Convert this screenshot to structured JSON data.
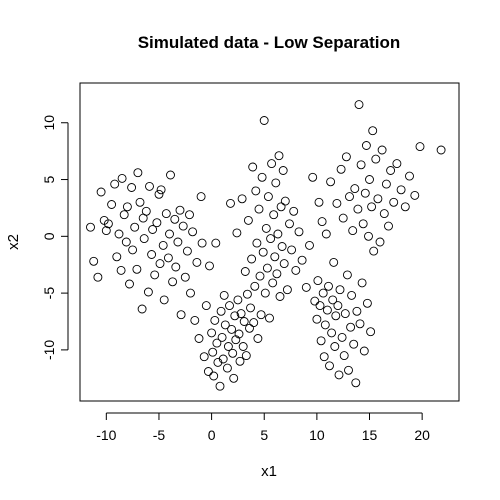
{
  "chart_data": {
    "type": "scatter",
    "title": "Simulated data - Low Separation",
    "xlabel": "x1",
    "ylabel": "x2",
    "xlim": [
      -12.5,
      23.5
    ],
    "ylim": [
      -14.5,
      13.5
    ],
    "x_ticks": [
      -10,
      -5,
      0,
      5,
      10,
      15,
      20
    ],
    "y_ticks": [
      -10,
      -5,
      0,
      5,
      10
    ],
    "grid": false,
    "marker": "open-circle",
    "points": [
      [
        -11.5,
        0.8
      ],
      [
        -11.2,
        -2.2
      ],
      [
        -10.8,
        -3.6
      ],
      [
        -10.5,
        3.9
      ],
      [
        -10.2,
        1.4
      ],
      [
        -10.0,
        0.5
      ],
      [
        -9.8,
        1.1
      ],
      [
        -9.5,
        2.8
      ],
      [
        -9.2,
        4.6
      ],
      [
        -9.0,
        -1.8
      ],
      [
        -8.8,
        0.2
      ],
      [
        -8.6,
        -3.0
      ],
      [
        -8.5,
        5.1
      ],
      [
        -8.3,
        1.9
      ],
      [
        -8.1,
        -0.5
      ],
      [
        -8.0,
        2.6
      ],
      [
        -7.8,
        -4.2
      ],
      [
        -7.6,
        4.3
      ],
      [
        -7.5,
        -1.2
      ],
      [
        -7.3,
        0.8
      ],
      [
        -7.1,
        -2.9
      ],
      [
        -7.0,
        5.6
      ],
      [
        -6.8,
        3.0
      ],
      [
        -6.6,
        -6.4
      ],
      [
        -6.5,
        1.6
      ],
      [
        -6.4,
        -0.2
      ],
      [
        -6.2,
        2.2
      ],
      [
        -6.0,
        -4.9
      ],
      [
        -5.9,
        4.4
      ],
      [
        -5.7,
        -1.6
      ],
      [
        -5.6,
        0.6
      ],
      [
        -5.4,
        -3.4
      ],
      [
        -5.2,
        1.2
      ],
      [
        -5.0,
        3.7
      ],
      [
        -4.9,
        -2.4
      ],
      [
        -4.8,
        4.1
      ],
      [
        -4.6,
        -0.8
      ],
      [
        -4.5,
        -5.6
      ],
      [
        -4.3,
        2.0
      ],
      [
        -4.1,
        -1.9
      ],
      [
        -4.0,
        0.2
      ],
      [
        -3.9,
        5.4
      ],
      [
        -3.7,
        -4.0
      ],
      [
        -3.5,
        1.5
      ],
      [
        -3.4,
        -2.7
      ],
      [
        -3.2,
        -0.5
      ],
      [
        -3.0,
        2.3
      ],
      [
        -2.9,
        -6.9
      ],
      [
        -2.7,
        0.9
      ],
      [
        -2.5,
        -3.6
      ],
      [
        -2.3,
        -1.3
      ],
      [
        -2.1,
        1.9
      ],
      [
        -2.0,
        -5.0
      ],
      [
        -1.8,
        0.4
      ],
      [
        -1.6,
        -7.4
      ],
      [
        -1.4,
        -2.3
      ],
      [
        -1.2,
        -9.0
      ],
      [
        -1.0,
        3.5
      ],
      [
        -0.9,
        -0.6
      ],
      [
        -0.7,
        -10.6
      ],
      [
        -0.5,
        -6.1
      ],
      [
        -0.3,
        -11.9
      ],
      [
        -0.2,
        -2.6
      ],
      [
        0.0,
        -8.5
      ],
      [
        0.1,
        -10.2
      ],
      [
        0.2,
        -12.3
      ],
      [
        0.3,
        -7.4
      ],
      [
        0.4,
        -0.6
      ],
      [
        0.5,
        -9.4
      ],
      [
        0.6,
        -11.1
      ],
      [
        0.8,
        -13.2
      ],
      [
        0.9,
        -6.6
      ],
      [
        1.0,
        -8.9
      ],
      [
        1.1,
        -10.8
      ],
      [
        1.2,
        -5.2
      ],
      [
        1.3,
        -7.8
      ],
      [
        1.5,
        -11.6
      ],
      [
        1.6,
        -9.7
      ],
      [
        1.7,
        -6.1
      ],
      [
        1.8,
        2.9
      ],
      [
        1.9,
        -8.2
      ],
      [
        2.0,
        -10.3
      ],
      [
        2.1,
        -12.5
      ],
      [
        2.2,
        -7.0
      ],
      [
        2.3,
        -9.1
      ],
      [
        2.4,
        0.3
      ],
      [
        2.5,
        -5.6
      ],
      [
        2.6,
        -8.6
      ],
      [
        2.7,
        -11.0
      ],
      [
        2.8,
        -6.8
      ],
      [
        2.9,
        3.3
      ],
      [
        3.0,
        -9.7
      ],
      [
        3.1,
        -7.5
      ],
      [
        3.2,
        -3.1
      ],
      [
        3.3,
        -10.5
      ],
      [
        3.4,
        -5.1
      ],
      [
        3.5,
        1.4
      ],
      [
        3.6,
        -8.1
      ],
      [
        3.7,
        -6.3
      ],
      [
        3.8,
        -2.0
      ],
      [
        3.9,
        6.1
      ],
      [
        4.0,
        -7.6
      ],
      [
        4.1,
        -4.4
      ],
      [
        4.2,
        4.0
      ],
      [
        4.3,
        -0.6
      ],
      [
        4.4,
        -9.0
      ],
      [
        4.5,
        2.4
      ],
      [
        4.6,
        -3.5
      ],
      [
        4.7,
        -6.9
      ],
      [
        4.8,
        5.2
      ],
      [
        4.9,
        -1.4
      ],
      [
        5.0,
        10.2
      ],
      [
        5.1,
        -5.0
      ],
      [
        5.2,
        0.7
      ],
      [
        5.3,
        -2.8
      ],
      [
        5.4,
        3.5
      ],
      [
        5.5,
        -7.2
      ],
      [
        5.6,
        -0.2
      ],
      [
        5.7,
        6.4
      ],
      [
        5.8,
        -4.1
      ],
      [
        5.9,
        1.9
      ],
      [
        6.0,
        -1.8
      ],
      [
        6.1,
        4.7
      ],
      [
        6.2,
        -3.3
      ],
      [
        6.3,
        0.2
      ],
      [
        6.4,
        7.1
      ],
      [
        6.5,
        -5.3
      ],
      [
        6.6,
        2.6
      ],
      [
        6.7,
        -0.9
      ],
      [
        6.8,
        5.8
      ],
      [
        6.9,
        -2.4
      ],
      [
        7.0,
        3.1
      ],
      [
        7.2,
        -4.7
      ],
      [
        7.4,
        1.1
      ],
      [
        7.6,
        -1.2
      ],
      [
        7.8,
        2.2
      ],
      [
        8.0,
        -3.0
      ],
      [
        8.3,
        0.4
      ],
      [
        8.6,
        -2.1
      ],
      [
        9.0,
        -4.5
      ],
      [
        9.3,
        -0.8
      ],
      [
        9.6,
        5.2
      ],
      [
        9.8,
        -5.7
      ],
      [
        10.0,
        -7.3
      ],
      [
        10.1,
        -3.9
      ],
      [
        10.2,
        3.0
      ],
      [
        10.3,
        -6.1
      ],
      [
        10.4,
        -9.2
      ],
      [
        10.5,
        1.3
      ],
      [
        10.6,
        -5.0
      ],
      [
        10.7,
        -10.6
      ],
      [
        10.8,
        -7.8
      ],
      [
        10.9,
        0.2
      ],
      [
        11.0,
        -6.5
      ],
      [
        11.1,
        -4.4
      ],
      [
        11.2,
        -11.4
      ],
      [
        11.3,
        4.8
      ],
      [
        11.4,
        -8.5
      ],
      [
        11.5,
        -5.6
      ],
      [
        11.6,
        -2.3
      ],
      [
        11.7,
        -9.7
      ],
      [
        11.8,
        -7.0
      ],
      [
        11.9,
        2.9
      ],
      [
        12.0,
        -6.1
      ],
      [
        12.1,
        -12.2
      ],
      [
        12.2,
        -4.7
      ],
      [
        12.3,
        5.9
      ],
      [
        12.4,
        -8.9
      ],
      [
        12.5,
        1.6
      ],
      [
        12.6,
        -10.5
      ],
      [
        12.7,
        -6.8
      ],
      [
        12.8,
        7.0
      ],
      [
        12.9,
        -3.4
      ],
      [
        13.0,
        -11.8
      ],
      [
        13.1,
        3.5
      ],
      [
        13.2,
        -8.0
      ],
      [
        13.3,
        -5.2
      ],
      [
        13.4,
        0.5
      ],
      [
        13.5,
        -9.5
      ],
      [
        13.6,
        4.2
      ],
      [
        13.7,
        -12.9
      ],
      [
        13.8,
        -6.6
      ],
      [
        13.9,
        2.4
      ],
      [
        14.0,
        11.6
      ],
      [
        14.1,
        -7.7
      ],
      [
        14.2,
        6.3
      ],
      [
        14.3,
        -4.1
      ],
      [
        14.4,
        1.1
      ],
      [
        14.5,
        -10.1
      ],
      [
        14.6,
        3.8
      ],
      [
        14.7,
        8.0
      ],
      [
        14.8,
        -5.9
      ],
      [
        14.9,
        0.0
      ],
      [
        15.0,
        5.0
      ],
      [
        15.1,
        -8.4
      ],
      [
        15.2,
        2.6
      ],
      [
        15.3,
        9.3
      ],
      [
        15.4,
        -1.3
      ],
      [
        15.6,
        6.8
      ],
      [
        15.8,
        3.3
      ],
      [
        16.0,
        -0.5
      ],
      [
        16.2,
        7.6
      ],
      [
        16.4,
        2.0
      ],
      [
        16.6,
        4.6
      ],
      [
        16.8,
        0.9
      ],
      [
        17.0,
        5.8
      ],
      [
        17.3,
        3.0
      ],
      [
        17.6,
        6.4
      ],
      [
        18.0,
        4.1
      ],
      [
        18.4,
        2.6
      ],
      [
        18.8,
        5.3
      ],
      [
        19.3,
        3.6
      ],
      [
        19.8,
        7.9
      ],
      [
        21.8,
        7.6
      ]
    ]
  }
}
